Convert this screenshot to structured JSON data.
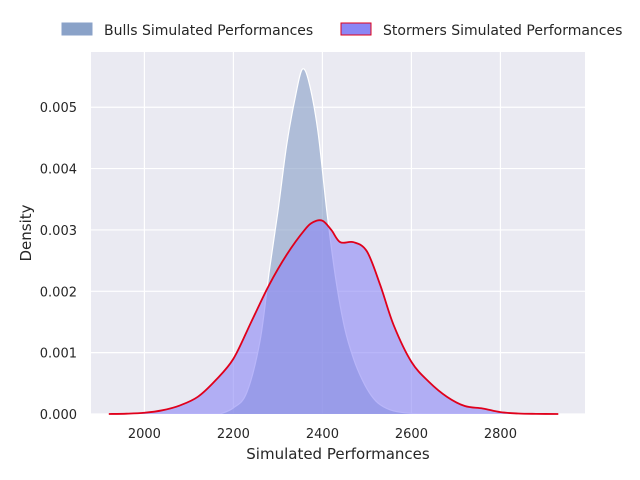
{
  "chart_data": {
    "type": "area",
    "title": "",
    "xlabel": "Simulated Performances",
    "ylabel": "Density",
    "xlim": [
      1880,
      2990
    ],
    "ylim": [
      0,
      0.0059
    ],
    "x_ticks": [
      2000,
      2200,
      2400,
      2600,
      2800
    ],
    "y_ticks": [
      0.0,
      0.001,
      0.002,
      0.003,
      0.004,
      0.005
    ],
    "y_tick_labels": [
      "0.000",
      "0.001",
      "0.002",
      "0.003",
      "0.004",
      "0.005"
    ],
    "grid": true,
    "legend_position": "top",
    "series": [
      {
        "name": "Bulls Simulated Performances",
        "fill": "#8aa2c8",
        "fill_opacity": 0.62,
        "line": "#ffffff",
        "x": [
          2170,
          2200,
          2230,
          2260,
          2280,
          2300,
          2320,
          2340,
          2355,
          2370,
          2390,
          2410,
          2430,
          2450,
          2470,
          2490,
          2510,
          2530,
          2560,
          2600,
          2640,
          2680
        ],
        "values": [
          0.0,
          0.0001,
          0.00035,
          0.0012,
          0.0023,
          0.0033,
          0.0044,
          0.0052,
          0.00562,
          0.0054,
          0.0046,
          0.0033,
          0.0022,
          0.0014,
          0.0009,
          0.00055,
          0.0003,
          0.00015,
          5e-05,
          1e-05,
          0.0,
          0.0
        ]
      },
      {
        "name": "Stormers Simulated Performances",
        "fill": "#8b86f5",
        "fill_opacity": 0.6,
        "line": "#e0001b",
        "x": [
          1920,
          1960,
          2000,
          2040,
          2080,
          2120,
          2160,
          2200,
          2240,
          2280,
          2320,
          2360,
          2380,
          2400,
          2420,
          2440,
          2470,
          2500,
          2530,
          2560,
          2600,
          2640,
          2680,
          2720,
          2760,
          2800,
          2840,
          2880,
          2930
        ],
        "values": [
          0.0,
          5e-06,
          2e-05,
          6e-05,
          0.00014,
          0.00028,
          0.00055,
          0.0009,
          0.0015,
          0.0021,
          0.0026,
          0.003,
          0.00313,
          0.00315,
          0.003,
          0.0028,
          0.0028,
          0.00265,
          0.0021,
          0.00145,
          0.00085,
          0.00052,
          0.00028,
          0.00013,
          9e-05,
          3e-05,
          8e-06,
          2e-06,
          0.0
        ]
      }
    ]
  }
}
